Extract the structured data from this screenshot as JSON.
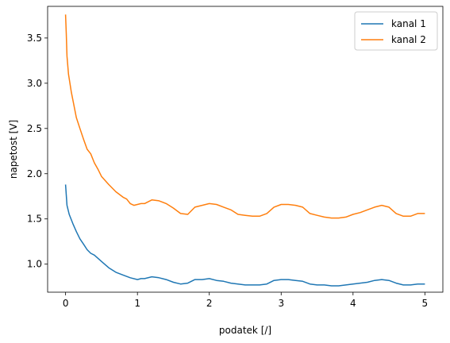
{
  "chart_data": {
    "type": "line",
    "xlabel": "podatek [/]",
    "ylabel": "napetost [V]",
    "xlim": [
      -0.25,
      5.25
    ],
    "ylim": [
      0.69,
      3.85
    ],
    "xticks": [
      0,
      1,
      2,
      3,
      4,
      5
    ],
    "yticks": [
      1.0,
      1.5,
      2.0,
      2.5,
      3.0,
      3.5
    ],
    "xtick_labels": [
      "0",
      "1",
      "2",
      "3",
      "4",
      "5"
    ],
    "ytick_labels": [
      "1.0",
      "1.5",
      "2.0",
      "2.5",
      "3.0",
      "3.5"
    ],
    "grid": false,
    "legend_position": "top-right",
    "series": [
      {
        "name": "kanal 1",
        "color": "#1f77b4",
        "x": [
          0,
          0.02,
          0.05,
          0.1,
          0.15,
          0.2,
          0.25,
          0.3,
          0.35,
          0.4,
          0.5,
          0.6,
          0.7,
          0.8,
          0.9,
          1.0,
          1.05,
          1.1,
          1.2,
          1.3,
          1.4,
          1.5,
          1.6,
          1.7,
          1.8,
          1.9,
          2.0,
          2.1,
          2.2,
          2.3,
          2.4,
          2.5,
          2.6,
          2.7,
          2.8,
          2.9,
          3.0,
          3.1,
          3.2,
          3.3,
          3.4,
          3.5,
          3.6,
          3.7,
          3.8,
          3.9,
          4.0,
          4.1,
          4.2,
          4.3,
          4.4,
          4.5,
          4.6,
          4.7,
          4.8,
          4.9,
          5.0
        ],
        "y": [
          1.88,
          1.65,
          1.55,
          1.45,
          1.36,
          1.28,
          1.22,
          1.16,
          1.12,
          1.1,
          1.03,
          0.96,
          0.91,
          0.88,
          0.85,
          0.83,
          0.84,
          0.84,
          0.86,
          0.85,
          0.83,
          0.8,
          0.78,
          0.79,
          0.83,
          0.83,
          0.84,
          0.82,
          0.81,
          0.79,
          0.78,
          0.77,
          0.77,
          0.77,
          0.78,
          0.82,
          0.83,
          0.83,
          0.82,
          0.81,
          0.78,
          0.77,
          0.77,
          0.76,
          0.76,
          0.77,
          0.78,
          0.79,
          0.8,
          0.82,
          0.83,
          0.82,
          0.79,
          0.77,
          0.77,
          0.78,
          0.78
        ]
      },
      {
        "name": "kanal 2",
        "color": "#ff7f0e",
        "x": [
          0,
          0.01,
          0.02,
          0.04,
          0.06,
          0.08,
          0.1,
          0.15,
          0.2,
          0.25,
          0.3,
          0.35,
          0.4,
          0.45,
          0.5,
          0.6,
          0.7,
          0.8,
          0.85,
          0.9,
          0.95,
          1.0,
          1.05,
          1.1,
          1.2,
          1.3,
          1.4,
          1.5,
          1.6,
          1.7,
          1.8,
          1.9,
          2.0,
          2.1,
          2.2,
          2.3,
          2.4,
          2.5,
          2.6,
          2.7,
          2.8,
          2.9,
          3.0,
          3.1,
          3.2,
          3.3,
          3.4,
          3.5,
          3.6,
          3.7,
          3.8,
          3.9,
          4.0,
          4.1,
          4.2,
          4.3,
          4.4,
          4.5,
          4.6,
          4.7,
          4.8,
          4.9,
          5.0
        ],
        "y": [
          3.76,
          3.55,
          3.3,
          3.1,
          3.0,
          2.9,
          2.82,
          2.62,
          2.5,
          2.38,
          2.27,
          2.22,
          2.12,
          2.05,
          1.97,
          1.88,
          1.8,
          1.74,
          1.72,
          1.67,
          1.65,
          1.66,
          1.67,
          1.67,
          1.71,
          1.7,
          1.67,
          1.62,
          1.56,
          1.55,
          1.63,
          1.65,
          1.67,
          1.66,
          1.63,
          1.6,
          1.55,
          1.54,
          1.53,
          1.53,
          1.56,
          1.63,
          1.66,
          1.66,
          1.65,
          1.63,
          1.56,
          1.54,
          1.52,
          1.51,
          1.51,
          1.52,
          1.55,
          1.57,
          1.6,
          1.63,
          1.65,
          1.63,
          1.56,
          1.53,
          1.53,
          1.56,
          1.56
        ]
      }
    ]
  }
}
